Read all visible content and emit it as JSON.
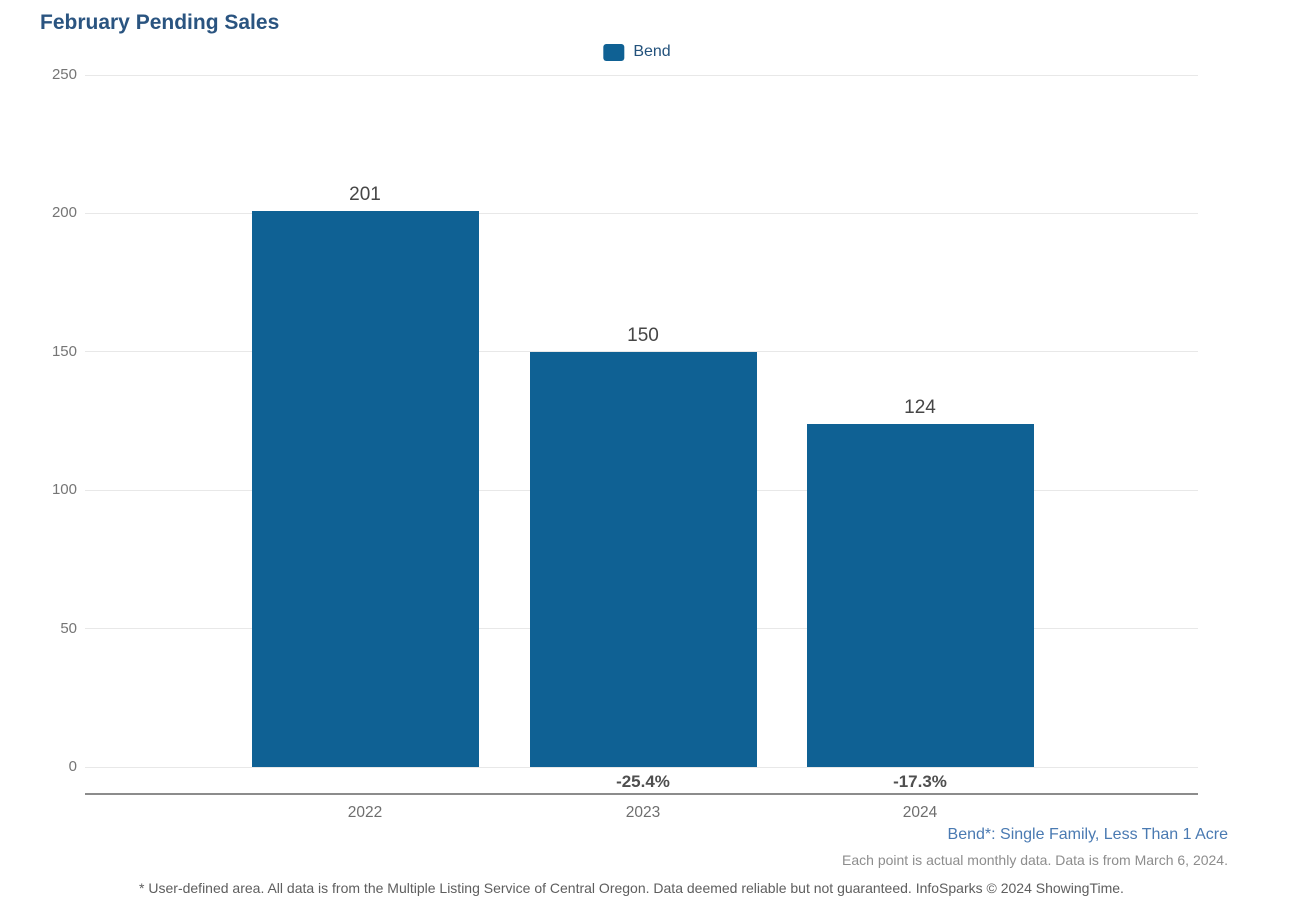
{
  "title": "February Pending Sales",
  "legend": {
    "label": "Bend",
    "color": "#0f6194"
  },
  "chart_data": {
    "type": "bar",
    "title": "February Pending Sales",
    "categories": [
      "2022",
      "2023",
      "2024"
    ],
    "series": [
      {
        "name": "Bend",
        "color": "#0f6194",
        "values": [
          201,
          150,
          124
        ]
      }
    ],
    "bar_value_labels": [
      "201",
      "150",
      "124"
    ],
    "pct_change_labels": [
      "",
      "-25.4%",
      "-17.3%"
    ],
    "xlabel": "",
    "ylabel": "",
    "ylim": [
      0,
      250
    ],
    "yticks": [
      0,
      50,
      100,
      150,
      200,
      250
    ],
    "grid": "horizontal",
    "legend_position": "top-center"
  },
  "footnotes": {
    "series_definition": "Bend*: Single Family, Less Than 1 Acre",
    "data_note": "Each point is actual monthly data. Data is from March 6, 2024.",
    "disclaimer": "* User-defined area. All data is from the Multiple Listing Service of Central Oregon. Data deemed reliable but not guaranteed. InfoSparks © 2024 ShowingTime."
  }
}
